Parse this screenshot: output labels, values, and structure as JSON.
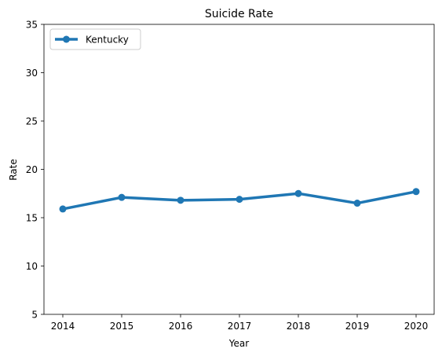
{
  "chart_data": {
    "type": "line",
    "title": "Suicide Rate",
    "xlabel": "Year",
    "ylabel": "Rate",
    "categories": [
      "2014",
      "2015",
      "2016",
      "2017",
      "2018",
      "2019",
      "2020"
    ],
    "series": [
      {
        "name": "Kentucky",
        "color": "#1f77b4",
        "values": [
          15.9,
          17.1,
          16.8,
          16.9,
          17.5,
          16.5,
          17.7
        ]
      }
    ],
    "ylim": [
      5,
      35
    ],
    "yticks": [
      5,
      10,
      15,
      20,
      25,
      30,
      35
    ],
    "grid": false,
    "legend": "top-left"
  }
}
